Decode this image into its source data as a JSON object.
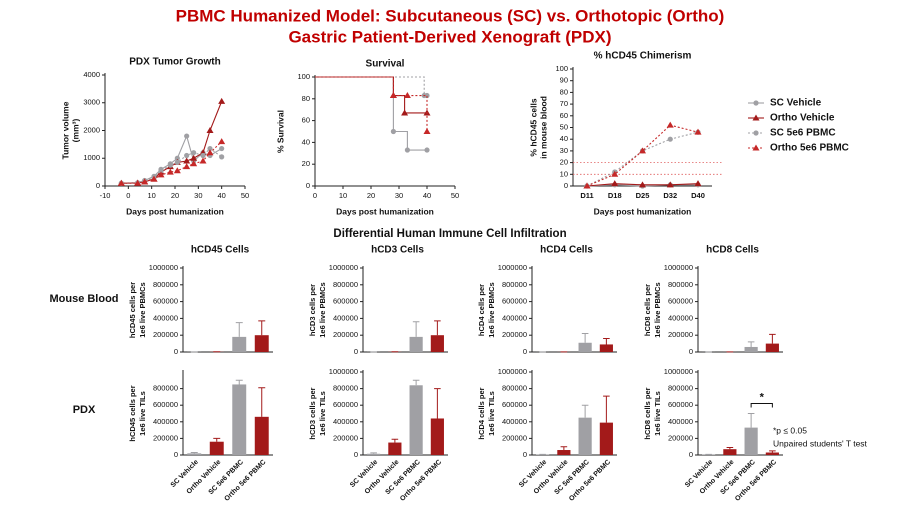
{
  "title": [
    "PBMC Humanized Model: Subcutaneous (SC) vs. Orthotopic (Ortho)",
    "Gastric Patient-Derived Xenograft (PDX)"
  ],
  "section_title": "Differential Human Immune Cell Infiltration",
  "row_labels": [
    "Mouse Blood",
    "PDX"
  ],
  "footnote": [
    "*p ≤ 0.05",
    "Unpaired students' T test"
  ],
  "chart_data": [
    {
      "type": "line",
      "title": "PDX Tumor Growth",
      "xlabel": "Days post humanization",
      "ylabel": [
        "Tumor volume",
        "(mm³)"
      ],
      "x": [
        -3,
        4,
        7,
        11,
        14,
        18,
        21,
        25,
        28,
        32,
        35,
        40
      ],
      "xlim": [
        -10,
        50
      ],
      "xticks": [
        -10,
        0,
        10,
        20,
        30,
        40,
        50
      ],
      "ylim": [
        0,
        4000
      ],
      "yticks": [
        0,
        1000,
        2000,
        3000,
        4000
      ],
      "series": [
        {
          "color": "#a0a0a4",
          "marker": "circle",
          "dash": false,
          "values": [
            100,
            120,
            200,
            350,
            600,
            800,
            1000,
            1800,
            900,
            1200,
            1100,
            1350
          ]
        },
        {
          "color": "#a31a1a",
          "marker": "triangle",
          "dash": false,
          "values": [
            100,
            110,
            150,
            250,
            500,
            700,
            850,
            900,
            1000,
            1200,
            2000,
            3050
          ]
        },
        {
          "color": "#a0a0a4",
          "marker": "circle",
          "dash": true,
          "values": [
            100,
            110,
            180,
            300,
            550,
            750,
            850,
            1100,
            1200,
            1100,
            1350,
            1050
          ]
        },
        {
          "color": "#c62828",
          "marker": "triangle",
          "dash": true,
          "values": [
            100,
            100,
            150,
            250,
            400,
            500,
            550,
            700,
            800,
            900,
            1200,
            1600
          ]
        }
      ]
    },
    {
      "type": "step",
      "title": "Survival",
      "xlabel": "Days post humanization",
      "ylabel": [
        "% Survival"
      ],
      "xlim": [
        0,
        50
      ],
      "xticks": [
        0,
        10,
        20,
        30,
        40,
        50
      ],
      "ylim": [
        0,
        100
      ],
      "yticks": [
        0,
        20,
        40,
        60,
        80,
        100
      ],
      "series": [
        {
          "color": "#a0a0a4",
          "marker": "circle",
          "dash": false,
          "x": [
            0,
            28,
            33,
            40
          ],
          "values": [
            100,
            50,
            33,
            33
          ]
        },
        {
          "color": "#a31a1a",
          "marker": "triangle",
          "dash": false,
          "x": [
            0,
            28,
            32,
            40
          ],
          "values": [
            100,
            83,
            67,
            67
          ]
        },
        {
          "color": "#a0a0a4",
          "marker": "circle",
          "dash": true,
          "x": [
            0,
            39,
            40
          ],
          "values": [
            100,
            83,
            83
          ]
        },
        {
          "color": "#c62828",
          "marker": "triangle",
          "dash": true,
          "x": [
            0,
            28,
            33,
            40
          ],
          "values": [
            100,
            83,
            83,
            50
          ]
        }
      ]
    },
    {
      "type": "line",
      "title": "% hCD45 Chimerism",
      "xlabel": "Days post humanization",
      "ylabel": [
        "% hCD45 cells",
        "in mouse blood"
      ],
      "categories": [
        "D11",
        "D18",
        "D25",
        "D32",
        "D40"
      ],
      "ylim": [
        0,
        100
      ],
      "yticks": [
        0,
        10,
        20,
        30,
        40,
        50,
        60,
        70,
        80,
        90,
        100
      ],
      "reference_lines": [
        10,
        20
      ],
      "series": [
        {
          "name": "SC Vehicle",
          "color": "#a0a0a4",
          "marker": "circle",
          "dash": false,
          "values": [
            0,
            1,
            0,
            1,
            1
          ]
        },
        {
          "name": "Ortho Vehicle",
          "color": "#a31a1a",
          "marker": "triangle",
          "dash": false,
          "values": [
            0,
            2,
            1,
            1,
            2
          ]
        },
        {
          "name": "SC 5e6 PBMC",
          "color": "#a0a0a4",
          "marker": "circle",
          "dash": true,
          "values": [
            0,
            12,
            30,
            40,
            46
          ]
        },
        {
          "name": "Ortho 5e6 PBMC",
          "color": "#c62828",
          "marker": "triangle",
          "dash": true,
          "values": [
            0,
            10,
            30,
            52,
            46
          ]
        }
      ]
    },
    {
      "type": "bar",
      "title": "hCD45 Cells",
      "ylabel": [
        "hCD45 cells per",
        "1e6 live PBMCs"
      ],
      "colors": [
        "#a0a0a4",
        "#a31a1a",
        "#a0a0a4",
        "#a31a1a"
      ],
      "values": [
        1000,
        2000,
        180000,
        200000
      ],
      "errors": [
        500,
        1000,
        170000,
        170000
      ],
      "ylim": [
        0,
        1000000
      ],
      "yticks": [
        0,
        200000,
        400000,
        600000,
        800000,
        1000000
      ]
    },
    {
      "type": "bar",
      "title": "hCD3 Cells",
      "ylabel": [
        "hCD3 cells per",
        "1e6 live PBMCs"
      ],
      "colors": [
        "#a0a0a4",
        "#a31a1a",
        "#a0a0a4",
        "#a31a1a"
      ],
      "values": [
        1000,
        2000,
        180000,
        200000
      ],
      "errors": [
        500,
        1000,
        180000,
        170000
      ],
      "ylim": [
        0,
        1000000
      ],
      "yticks": [
        0,
        200000,
        400000,
        600000,
        800000,
        1000000
      ]
    },
    {
      "type": "bar",
      "title": "hCD4 Cells",
      "ylabel": [
        "hCD4 cells per",
        "1e6 live PBMCs"
      ],
      "colors": [
        "#a0a0a4",
        "#a31a1a",
        "#a0a0a4",
        "#a31a1a"
      ],
      "values": [
        500,
        1000,
        110000,
        90000
      ],
      "errors": [
        300,
        500,
        110000,
        70000
      ],
      "ylim": [
        0,
        1000000
      ],
      "yticks": [
        0,
        200000,
        400000,
        600000,
        800000,
        1000000
      ]
    },
    {
      "type": "bar",
      "title": "hCD8 Cells",
      "ylabel": [
        "hCD8 cells per",
        "1e6 live PBMCs"
      ],
      "colors": [
        "#a0a0a4",
        "#a31a1a",
        "#a0a0a4",
        "#a31a1a"
      ],
      "values": [
        500,
        1000,
        60000,
        100000
      ],
      "errors": [
        300,
        500,
        60000,
        110000
      ],
      "ylim": [
        0,
        1000000
      ],
      "yticks": [
        0,
        200000,
        400000,
        600000,
        800000,
        1000000
      ]
    },
    {
      "type": "bar",
      "ylabel": [
        "hCD45 cells per",
        "1e6 live TILs"
      ],
      "colors": [
        "#a0a0a4",
        "#a31a1a",
        "#a0a0a4",
        "#a31a1a"
      ],
      "categories": [
        "SC Vehicle",
        "Ortho Vehicle",
        "SC 5e6 PBMC",
        "Ortho 5e6 PBMC"
      ],
      "values": [
        20000,
        160000,
        850000,
        460000
      ],
      "errors": [
        10000,
        40000,
        50000,
        350000
      ],
      "ylim": [
        0,
        1000000
      ],
      "yticks": [
        0,
        200000,
        400000,
        600000,
        800000
      ]
    },
    {
      "type": "bar",
      "ylabel": [
        "hCD3 cells per",
        "1e6 live TILs"
      ],
      "colors": [
        "#a0a0a4",
        "#a31a1a",
        "#a0a0a4",
        "#a31a1a"
      ],
      "categories": [
        "SC Vehicle",
        "Ortho Vehicle",
        "SC 5e6 PBMC",
        "Ortho 5e6 PBMC"
      ],
      "values": [
        15000,
        150000,
        840000,
        440000
      ],
      "errors": [
        10000,
        40000,
        60000,
        360000
      ],
      "ylim": [
        0,
        1000000
      ],
      "yticks": [
        0,
        200000,
        400000,
        600000,
        800000,
        1000000
      ]
    },
    {
      "type": "bar",
      "ylabel": [
        "hCD4 cells per",
        "1e6 live TILs"
      ],
      "colors": [
        "#a0a0a4",
        "#a31a1a",
        "#a0a0a4",
        "#a31a1a"
      ],
      "categories": [
        "SC Vehicle",
        "Ortho Vehicle",
        "SC 5e6 PBMC",
        "Ortho 5e6 PBMC"
      ],
      "values": [
        5000,
        60000,
        450000,
        390000
      ],
      "errors": [
        3000,
        40000,
        150000,
        320000
      ],
      "ylim": [
        0,
        1000000
      ],
      "yticks": [
        0,
        200000,
        400000,
        600000,
        800000,
        1000000
      ]
    },
    {
      "type": "bar",
      "ylabel": [
        "hCD8 cells per",
        "1e6 live TILs"
      ],
      "colors": [
        "#a0a0a4",
        "#a31a1a",
        "#a0a0a4",
        "#a31a1a"
      ],
      "categories": [
        "SC Vehicle",
        "Ortho Vehicle",
        "SC 5e6 PBMC",
        "Ortho 5e6 PBMC"
      ],
      "values": [
        5000,
        70000,
        330000,
        30000
      ],
      "errors": [
        3000,
        20000,
        170000,
        20000
      ],
      "annotation": "*",
      "ylim": [
        0,
        1000000
      ],
      "yticks": [
        0,
        200000,
        400000,
        600000,
        800000,
        1000000
      ]
    }
  ]
}
